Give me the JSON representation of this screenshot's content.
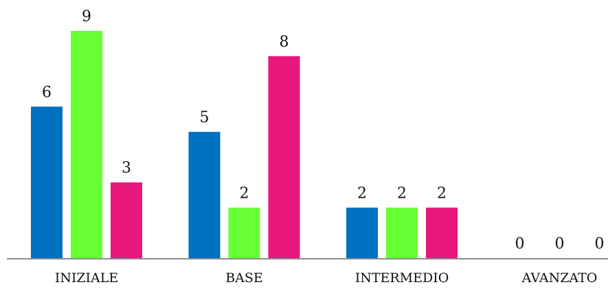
{
  "chart_data": {
    "type": "bar",
    "categories": [
      "INIZIALE",
      "BASE",
      "INTERMEDIO",
      "AVANZATO"
    ],
    "series": [
      {
        "color": "#0070c0",
        "values": [
          6,
          5,
          2,
          0
        ]
      },
      {
        "color": "#66ff33",
        "values": [
          9,
          2,
          2,
          0
        ]
      },
      {
        "color": "#e8177b",
        "values": [
          3,
          8,
          2,
          0
        ]
      }
    ],
    "ylim": [
      0,
      9
    ],
    "grid": false,
    "legend": "none",
    "data_labels": true
  }
}
